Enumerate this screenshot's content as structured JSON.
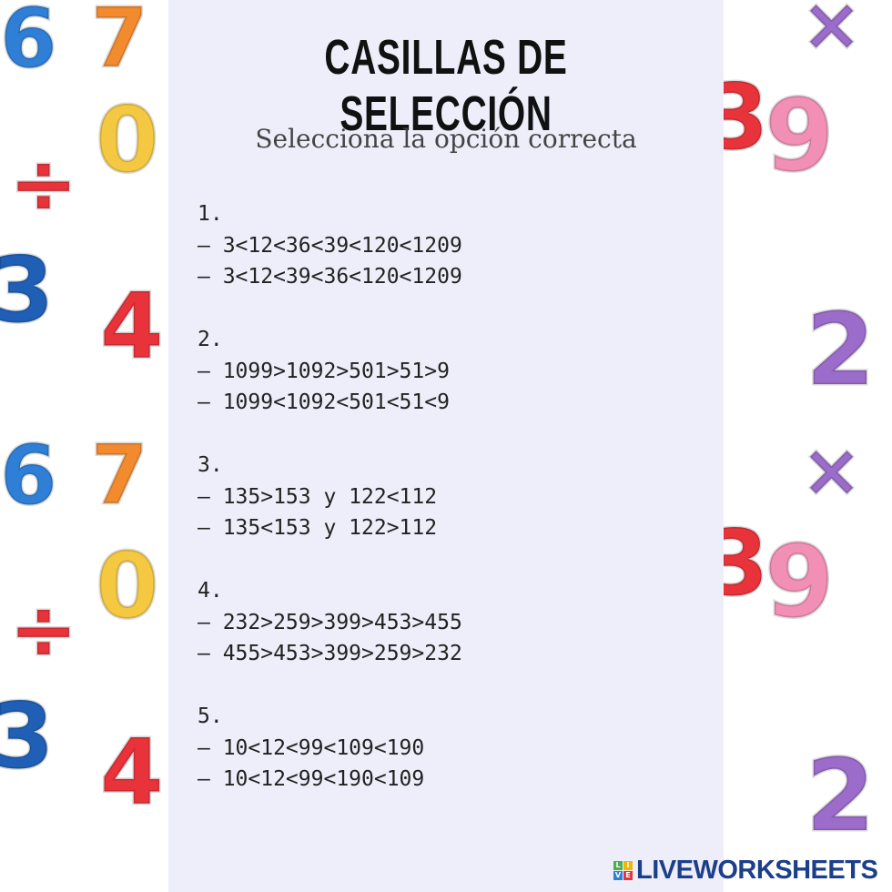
{
  "worksheet": {
    "title": "CASILLAS DE SELECCIÓN",
    "subtitle": "Selecciona la opción correcta",
    "questions": [
      {
        "number": "1.",
        "options": [
          "– 3<12<36<39<120<1209",
          "– 3<12<39<36<120<1209"
        ]
      },
      {
        "number": "2.",
        "options": [
          "– 1099>1092>501>51>9",
          "– 1099<1092<501<51<9"
        ]
      },
      {
        "number": "3.",
        "options": [
          "– 135>153 y 122<112",
          "– 135<153 y 122>112"
        ]
      },
      {
        "number": "4.",
        "options": [
          "– 232>259>399>453>455",
          "– 455>453>399>259>232"
        ]
      },
      {
        "number": "5.",
        "options": [
          "– 10<12<99<109<190",
          "– 10<12<99<190<109"
        ]
      }
    ]
  },
  "background": {
    "left_glyphs": [
      "6",
      "7",
      "0",
      "÷",
      "3",
      "4",
      "6",
      "7",
      "0",
      "÷",
      "3",
      "4"
    ],
    "right_glyphs": [
      "×",
      "9",
      "3",
      "2",
      "×",
      "9",
      "3",
      "2"
    ]
  },
  "logo": {
    "text": "LIVEWORKSHEETS",
    "mark_letters": [
      "L",
      "I",
      "V",
      "E"
    ],
    "color": "#1b3f8a"
  }
}
